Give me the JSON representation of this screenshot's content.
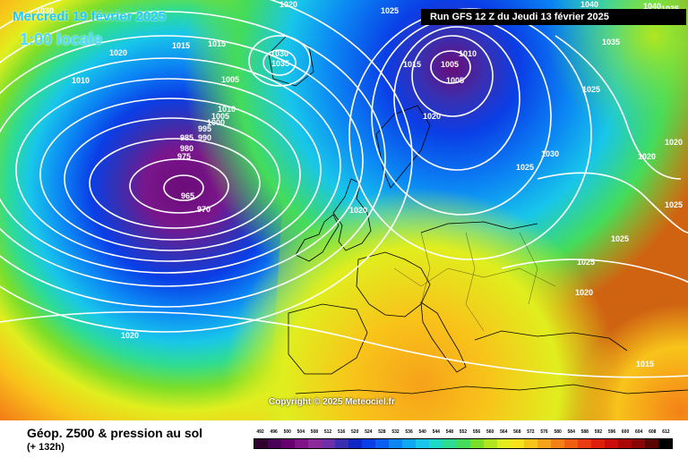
{
  "header": {
    "date_text": "Mercredi 19 février 2025",
    "time_text": "1:00 locale",
    "run_text": "Run GFS 12 Z du Jeudi 13 février 2025"
  },
  "copyright": "Copyright © 2025 Meteociel.fr",
  "legend": {
    "title": "Géop. Z500 & pression au sol",
    "subtitle": "(+ 132h)",
    "scale": [
      {
        "label": "492",
        "color": "#2d0030"
      },
      {
        "label": "496",
        "color": "#4a0055"
      },
      {
        "label": "500",
        "color": "#66006e"
      },
      {
        "label": "504",
        "color": "#7f1388"
      },
      {
        "label": "508",
        "color": "#8c2a9a"
      },
      {
        "label": "512",
        "color": "#6f2fa8"
      },
      {
        "label": "516",
        "color": "#3a2fb0"
      },
      {
        "label": "520",
        "color": "#1028c8"
      },
      {
        "label": "524",
        "color": "#0a3ee6"
      },
      {
        "label": "528",
        "color": "#0a5ff0"
      },
      {
        "label": "532",
        "color": "#0b86f4"
      },
      {
        "label": "536",
        "color": "#11a8f2"
      },
      {
        "label": "540",
        "color": "#18c6ea"
      },
      {
        "label": "544",
        "color": "#1ed8c8"
      },
      {
        "label": "548",
        "color": "#2edc94"
      },
      {
        "label": "552",
        "color": "#44dc5a"
      },
      {
        "label": "556",
        "color": "#7ade2a"
      },
      {
        "label": "560",
        "color": "#b0e620"
      },
      {
        "label": "564",
        "color": "#e0ee1e"
      },
      {
        "label": "568",
        "color": "#f8e21c"
      },
      {
        "label": "572",
        "color": "#f8c41a"
      },
      {
        "label": "576",
        "color": "#f6a21a"
      },
      {
        "label": "580",
        "color": "#f48018"
      },
      {
        "label": "584",
        "color": "#f05e14"
      },
      {
        "label": "588",
        "color": "#ea3c10"
      },
      {
        "label": "592",
        "color": "#e01e0c"
      },
      {
        "label": "596",
        "color": "#cc0c0a"
      },
      {
        "label": "600",
        "color": "#aa0808"
      },
      {
        "label": "604",
        "color": "#880606"
      },
      {
        "label": "608",
        "color": "#5c0404"
      },
      {
        "label": "612",
        "color": "#000000"
      }
    ]
  },
  "isobars": [
    {
      "text": "1020",
      "role": "isobar"
    },
    {
      "text": "1025",
      "role": "isobar"
    },
    {
      "text": "1040",
      "role": "isobar"
    },
    {
      "text": "1035",
      "role": "isobar"
    },
    {
      "text": "1030",
      "role": "isobar"
    },
    {
      "text": "1015",
      "role": "isobar"
    },
    {
      "text": "1015",
      "role": "isobar"
    },
    {
      "text": "1020",
      "role": "isobar"
    },
    {
      "text": "1010",
      "role": "isobar"
    },
    {
      "text": "1005",
      "role": "isobar"
    },
    {
      "text": "1030",
      "role": "isobar"
    },
    {
      "text": "1035",
      "role": "isobar"
    },
    {
      "text": "1010",
      "role": "isobar"
    },
    {
      "text": "1005",
      "role": "isobar"
    },
    {
      "text": "1000",
      "role": "isobar"
    },
    {
      "text": "995",
      "role": "isobar"
    },
    {
      "text": "990",
      "role": "isobar"
    },
    {
      "text": "985",
      "role": "isobar"
    },
    {
      "text": "980",
      "role": "isobar"
    },
    {
      "text": "975",
      "role": "isobar"
    },
    {
      "text": "965",
      "role": "isobar"
    },
    {
      "text": "970",
      "role": "isobar"
    },
    {
      "text": "1015",
      "role": "isobar"
    },
    {
      "text": "1005",
      "role": "isobar"
    },
    {
      "text": "1010",
      "role": "isobar"
    },
    {
      "text": "1005",
      "role": "isobar"
    },
    {
      "text": "1020",
      "role": "isobar"
    },
    {
      "text": "1035",
      "role": "isobar"
    },
    {
      "text": "1025",
      "role": "isobar"
    },
    {
      "text": "1030",
      "role": "isobar"
    },
    {
      "text": "1025",
      "role": "isobar"
    },
    {
      "text": "1020",
      "role": "isobar"
    },
    {
      "text": "1020",
      "role": "isobar"
    },
    {
      "text": "1025",
      "role": "isobar"
    },
    {
      "text": "1025",
      "role": "isobar"
    },
    {
      "text": "1025",
      "role": "isobar"
    },
    {
      "text": "1020",
      "role": "isobar"
    },
    {
      "text": "1020",
      "role": "isobar"
    },
    {
      "text": "1015",
      "role": "isobar"
    },
    {
      "text": "1035",
      "role": "isobar"
    },
    {
      "text": "1040",
      "role": "isobar"
    },
    {
      "text": "1020",
      "role": "isobar"
    }
  ]
}
